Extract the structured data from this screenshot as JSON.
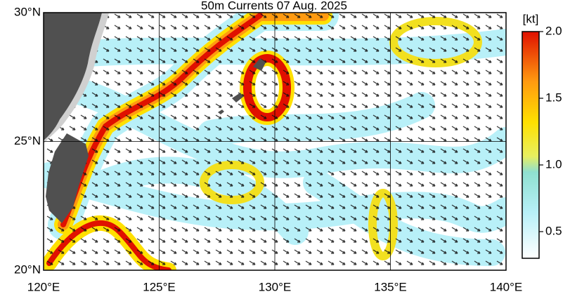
{
  "chart_data": {
    "type": "map",
    "title": "50m Currents  07 Aug. 2025",
    "xlim": [
      120,
      140
    ],
    "ylim": [
      20,
      30
    ],
    "xticks": [
      {
        "value": 120,
        "label": "120°E"
      },
      {
        "value": 125,
        "label": "125°E"
      },
      {
        "value": 130,
        "label": "130°E"
      },
      {
        "value": 135,
        "label": "135°E"
      },
      {
        "value": 140,
        "label": "140°E"
      }
    ],
    "yticks": [
      {
        "value": 20,
        "label": "20°N"
      },
      {
        "value": 25,
        "label": "25°N"
      },
      {
        "value": 30,
        "label": "30°N"
      }
    ],
    "grid": true,
    "colorbar": {
      "label": "[kt]",
      "lim": [
        0.3,
        2.0
      ],
      "ticks": [
        0.5,
        {
          "value": 1.0,
          "label": "1.0"
        },
        1.5,
        {
          "value": 2.0,
          "label": "2.0"
        }
      ]
    }
  }
}
